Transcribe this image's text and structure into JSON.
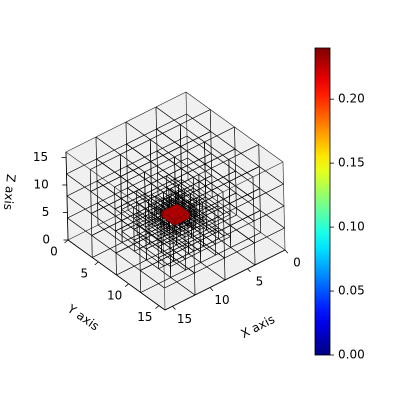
{
  "chart_data": {
    "type": "voxels3d",
    "xlabel": "X axis",
    "ylabel": "Y axis",
    "zlabel": "Z axis",
    "xlim": [
      0,
      16
    ],
    "ylim": [
      0,
      16
    ],
    "zlim": [
      0,
      16
    ],
    "xticks": [
      0,
      5,
      10,
      15
    ],
    "yticks": [
      0,
      5,
      10,
      15
    ],
    "zticks": [
      0,
      5,
      10,
      15
    ],
    "voxels": [
      {
        "x": [
          7,
          9
        ],
        "y": [
          7,
          9
        ],
        "z": [
          5,
          6
        ],
        "value": 0.23
      }
    ],
    "colormap": "jet",
    "clim": [
      0,
      0.24
    ],
    "cticks": [
      {
        "value": 0,
        "label": "0.00"
      },
      {
        "value": 0.05,
        "label": "0.05"
      },
      {
        "value": 0.1,
        "label": "0.10"
      },
      {
        "value": 0.15,
        "label": "0.15"
      },
      {
        "value": 0.2,
        "label": "0.20"
      }
    ]
  }
}
